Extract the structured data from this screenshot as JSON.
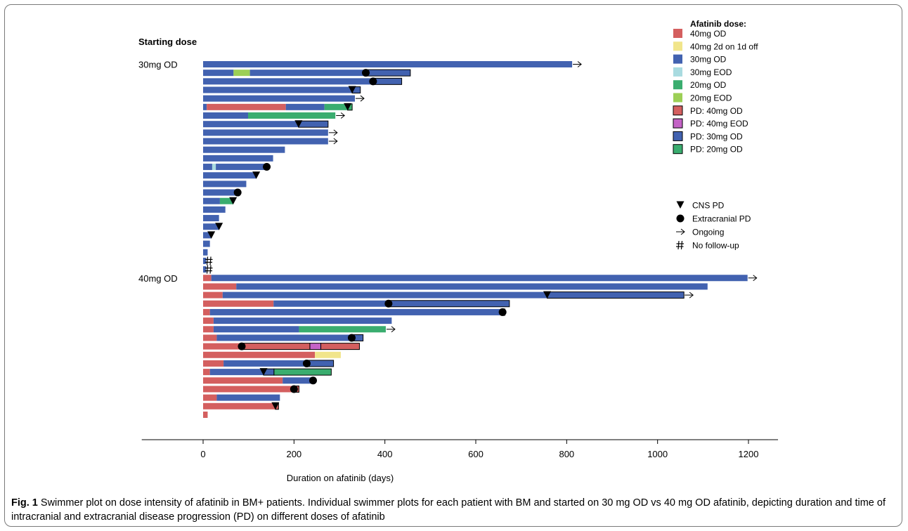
{
  "figure": {
    "label": "Fig. 1",
    "caption": "Swimmer plot on dose intensity of afatinib in BM+ patients. Individual swimmer plots for each patient with BM and started on 30 mg OD vs 40 mg OD afatinib, depicting duration and time of intracranial and extracranial disease progression (PD) on different doses of afatinib"
  },
  "chart_data": {
    "type": "swimmer",
    "xlabel": "Duration on afatinib (days)",
    "xlim": [
      -135,
      1265
    ],
    "xticks": [
      0,
      200,
      400,
      600,
      800,
      1000,
      1200
    ],
    "groups_title": "Starting dose",
    "legend_title": "Afatinib dose:",
    "legend_position": "top-right",
    "colors": {
      "40mg OD": "#d45f5f",
      "40mg 2d on 1d off": "#f1e58b",
      "30mg OD": "#4262b0",
      "30mg EOD": "#a9dbe0",
      "20mg OD": "#3aad6f",
      "20mg EOD": "#9ccf56",
      "PD: 40mg OD": "#d45f5f",
      "PD: 40mg EOD": "#c463c6",
      "PD: 30mg OD": "#4262b0",
      "PD: 20mg OD": "#3aad6f"
    },
    "legend_items": [
      "40mg OD",
      "40mg 2d on 1d off",
      "30mg OD",
      "30mg EOD",
      "20mg OD",
      "20mg EOD",
      "PD: 40mg OD",
      "PD: 40mg EOD",
      "PD: 30mg OD",
      "PD: 20mg OD"
    ],
    "marker_legend": [
      {
        "symbol": "triangle",
        "label": "CNS PD"
      },
      {
        "symbol": "circle",
        "label": "Extracranial PD"
      },
      {
        "symbol": "arrow",
        "label": "Ongoing"
      },
      {
        "symbol": "hash",
        "label": "No follow-up"
      }
    ],
    "groups": [
      {
        "name": "30mg OD",
        "patients": [
          {
            "segments": [
              [
                "30mg OD",
                0,
                812
              ]
            ],
            "markers": [],
            "ongoing": true,
            "no_followup": false
          },
          {
            "segments": [
              [
                "30mg OD",
                0,
                67
              ],
              [
                "20mg EOD",
                67,
                103
              ],
              [
                "30mg OD",
                103,
                358
              ],
              [
                "PD: 30mg OD",
                358,
                456
              ]
            ],
            "markers": [
              [
                "circle",
                358
              ]
            ],
            "ongoing": false,
            "no_followup": false
          },
          {
            "segments": [
              [
                "30mg OD",
                0,
                374
              ],
              [
                "PD: 30mg OD",
                374,
                437
              ]
            ],
            "markers": [
              [
                "circle",
                374
              ]
            ],
            "ongoing": false,
            "no_followup": false
          },
          {
            "segments": [
              [
                "30mg OD",
                0,
                328
              ],
              [
                "PD: 30mg OD",
                328,
                346
              ]
            ],
            "markers": [
              [
                "triangle",
                328
              ]
            ],
            "ongoing": false,
            "no_followup": false
          },
          {
            "segments": [
              [
                "30mg OD",
                0,
                334
              ]
            ],
            "markers": [],
            "ongoing": true,
            "no_followup": false
          },
          {
            "segments": [
              [
                "30mg OD",
                0,
                8
              ],
              [
                "40mg OD",
                8,
                182
              ],
              [
                "30mg OD",
                182,
                267
              ],
              [
                "20mg OD",
                267,
                318
              ],
              [
                "PD: 20mg OD",
                318,
                328
              ]
            ],
            "markers": [
              [
                "triangle",
                318
              ]
            ],
            "ongoing": false,
            "no_followup": false
          },
          {
            "segments": [
              [
                "30mg OD",
                0,
                99
              ],
              [
                "20mg OD",
                99,
                291
              ]
            ],
            "markers": [],
            "ongoing": true,
            "no_followup": false
          },
          {
            "segments": [
              [
                "30mg OD",
                0,
                210
              ],
              [
                "PD: 30mg OD",
                210,
                275
              ]
            ],
            "markers": [
              [
                "triangle",
                210
              ]
            ],
            "ongoing": false,
            "no_followup": false
          },
          {
            "segments": [
              [
                "30mg OD",
                0,
                275
              ]
            ],
            "markers": [],
            "ongoing": true,
            "no_followup": false
          },
          {
            "segments": [
              [
                "30mg OD",
                0,
                275
              ]
            ],
            "markers": [],
            "ongoing": true,
            "no_followup": false
          },
          {
            "segments": [
              [
                "30mg OD",
                0,
                180
              ]
            ],
            "markers": [],
            "ongoing": false,
            "no_followup": false
          },
          {
            "segments": [
              [
                "30mg OD",
                0,
                154
              ]
            ],
            "markers": [],
            "ongoing": false,
            "no_followup": false
          },
          {
            "segments": [
              [
                "30mg OD",
                0,
                20
              ],
              [
                "30mg EOD",
                20,
                28
              ],
              [
                "30mg OD",
                28,
                140
              ]
            ],
            "markers": [
              [
                "circle",
                140
              ]
            ],
            "ongoing": false,
            "no_followup": false
          },
          {
            "segments": [
              [
                "30mg OD",
                0,
                117
              ]
            ],
            "markers": [
              [
                "triangle",
                117
              ]
            ],
            "ongoing": false,
            "no_followup": false
          },
          {
            "segments": [
              [
                "30mg OD",
                0,
                95
              ]
            ],
            "markers": [],
            "ongoing": false,
            "no_followup": false
          },
          {
            "segments": [
              [
                "30mg OD",
                0,
                76
              ]
            ],
            "markers": [
              [
                "circle",
                76
              ]
            ],
            "ongoing": false,
            "no_followup": false
          },
          {
            "segments": [
              [
                "30mg OD",
                0,
                37
              ],
              [
                "20mg OD",
                37,
                66
              ]
            ],
            "markers": [
              [
                "triangle",
                66
              ]
            ],
            "ongoing": false,
            "no_followup": false
          },
          {
            "segments": [
              [
                "30mg OD",
                0,
                49
              ]
            ],
            "markers": [],
            "ongoing": false,
            "no_followup": false
          },
          {
            "segments": [
              [
                "30mg OD",
                0,
                35
              ]
            ],
            "markers": [],
            "ongoing": false,
            "no_followup": false
          },
          {
            "segments": [
              [
                "30mg OD",
                0,
                35
              ]
            ],
            "markers": [
              [
                "triangle",
                35
              ]
            ],
            "ongoing": false,
            "no_followup": false
          },
          {
            "segments": [
              [
                "30mg OD",
                0,
                18
              ]
            ],
            "markers": [
              [
                "triangle",
                18
              ]
            ],
            "ongoing": false,
            "no_followup": false
          },
          {
            "segments": [
              [
                "30mg OD",
                0,
                15
              ]
            ],
            "markers": [],
            "ongoing": false,
            "no_followup": false
          },
          {
            "segments": [
              [
                "30mg OD",
                0,
                10
              ]
            ],
            "markers": [],
            "ongoing": false,
            "no_followup": false
          },
          {
            "segments": [
              [
                "30mg OD",
                0,
                7
              ]
            ],
            "markers": [],
            "ongoing": false,
            "no_followup": true
          },
          {
            "segments": [
              [
                "30mg OD",
                0,
                7
              ]
            ],
            "markers": [],
            "ongoing": false,
            "no_followup": true
          }
        ]
      },
      {
        "name": "40mg OD",
        "patients": [
          {
            "segments": [
              [
                "40mg OD",
                0,
                18
              ],
              [
                "30mg OD",
                18,
                1198
              ]
            ],
            "markers": [],
            "ongoing": true,
            "no_followup": false
          },
          {
            "segments": [
              [
                "40mg OD",
                0,
                73
              ],
              [
                "30mg OD",
                73,
                1110
              ]
            ],
            "markers": [],
            "ongoing": false,
            "no_followup": false
          },
          {
            "segments": [
              [
                "40mg OD",
                0,
                43
              ],
              [
                "30mg OD",
                43,
                757
              ],
              [
                "PD: 30mg OD",
                757,
                1058
              ]
            ],
            "markers": [
              [
                "triangle",
                757
              ]
            ],
            "ongoing": true,
            "no_followup": false
          },
          {
            "segments": [
              [
                "40mg OD",
                0,
                155
              ],
              [
                "30mg OD",
                155,
                408
              ],
              [
                "PD: 30mg OD",
                408,
                674
              ]
            ],
            "markers": [
              [
                "circle",
                408
              ]
            ],
            "ongoing": false,
            "no_followup": false
          },
          {
            "segments": [
              [
                "40mg OD",
                0,
                15
              ],
              [
                "30mg OD",
                15,
                659
              ],
              [
                "PD: 30mg OD",
                659,
                664
              ]
            ],
            "markers": [
              [
                "circle",
                659
              ]
            ],
            "ongoing": false,
            "no_followup": false
          },
          {
            "segments": [
              [
                "40mg OD",
                0,
                23
              ],
              [
                "30mg OD",
                23,
                415
              ]
            ],
            "markers": [],
            "ongoing": false,
            "no_followup": false
          },
          {
            "segments": [
              [
                "40mg OD",
                0,
                23
              ],
              [
                "30mg OD",
                23,
                211
              ],
              [
                "20mg OD",
                211,
                402
              ]
            ],
            "markers": [],
            "ongoing": true,
            "no_followup": false
          },
          {
            "segments": [
              [
                "40mg OD",
                0,
                30
              ],
              [
                "30mg OD",
                30,
                327
              ],
              [
                "PD: 30mg OD",
                327,
                352
              ]
            ],
            "markers": [
              [
                "circle",
                327
              ]
            ],
            "ongoing": false,
            "no_followup": false
          },
          {
            "segments": [
              [
                "40mg OD",
                0,
                85
              ],
              [
                "PD: 40mg OD",
                85,
                235
              ],
              [
                "PD: 40mg EOD",
                235,
                259
              ],
              [
                "PD: 40mg OD",
                259,
                344
              ]
            ],
            "markers": [
              [
                "circle",
                85
              ]
            ],
            "ongoing": false,
            "no_followup": false
          },
          {
            "segments": [
              [
                "40mg OD",
                0,
                246
              ],
              [
                "40mg 2d on 1d off",
                246,
                303
              ]
            ],
            "markers": [],
            "ongoing": false,
            "no_followup": false
          },
          {
            "segments": [
              [
                "40mg OD",
                0,
                45
              ],
              [
                "30mg OD",
                45,
                228
              ],
              [
                "PD: 30mg OD",
                228,
                287
              ]
            ],
            "markers": [
              [
                "circle",
                228
              ]
            ],
            "ongoing": false,
            "no_followup": false
          },
          {
            "segments": [
              [
                "40mg OD",
                0,
                15
              ],
              [
                "30mg OD",
                15,
                133
              ],
              [
                "PD: 30mg OD",
                133,
                156
              ],
              [
                "PD: 20mg OD",
                156,
                282
              ]
            ],
            "markers": [
              [
                "triangle",
                133
              ]
            ],
            "ongoing": false,
            "no_followup": false
          },
          {
            "segments": [
              [
                "40mg OD",
                0,
                175
              ],
              [
                "30mg OD",
                175,
                242
              ]
            ],
            "markers": [
              [
                "circle",
                242
              ]
            ],
            "ongoing": false,
            "no_followup": false
          },
          {
            "segments": [
              [
                "40mg OD",
                0,
                200
              ],
              [
                "PD: 40mg OD",
                200,
                211
              ]
            ],
            "markers": [
              [
                "circle",
                200
              ]
            ],
            "ongoing": false,
            "no_followup": false
          },
          {
            "segments": [
              [
                "40mg OD",
                0,
                30
              ],
              [
                "30mg OD",
                30,
                169
              ]
            ],
            "markers": [],
            "ongoing": false,
            "no_followup": false
          },
          {
            "segments": [
              [
                "40mg OD",
                0,
                159
              ],
              [
                "PD: 40mg OD",
                159,
                166
              ]
            ],
            "markers": [
              [
                "triangle",
                159
              ]
            ],
            "ongoing": false,
            "no_followup": false
          },
          {
            "segments": [
              [
                "40mg OD",
                0,
                10
              ]
            ],
            "markers": [],
            "ongoing": false,
            "no_followup": false
          }
        ]
      }
    ]
  }
}
